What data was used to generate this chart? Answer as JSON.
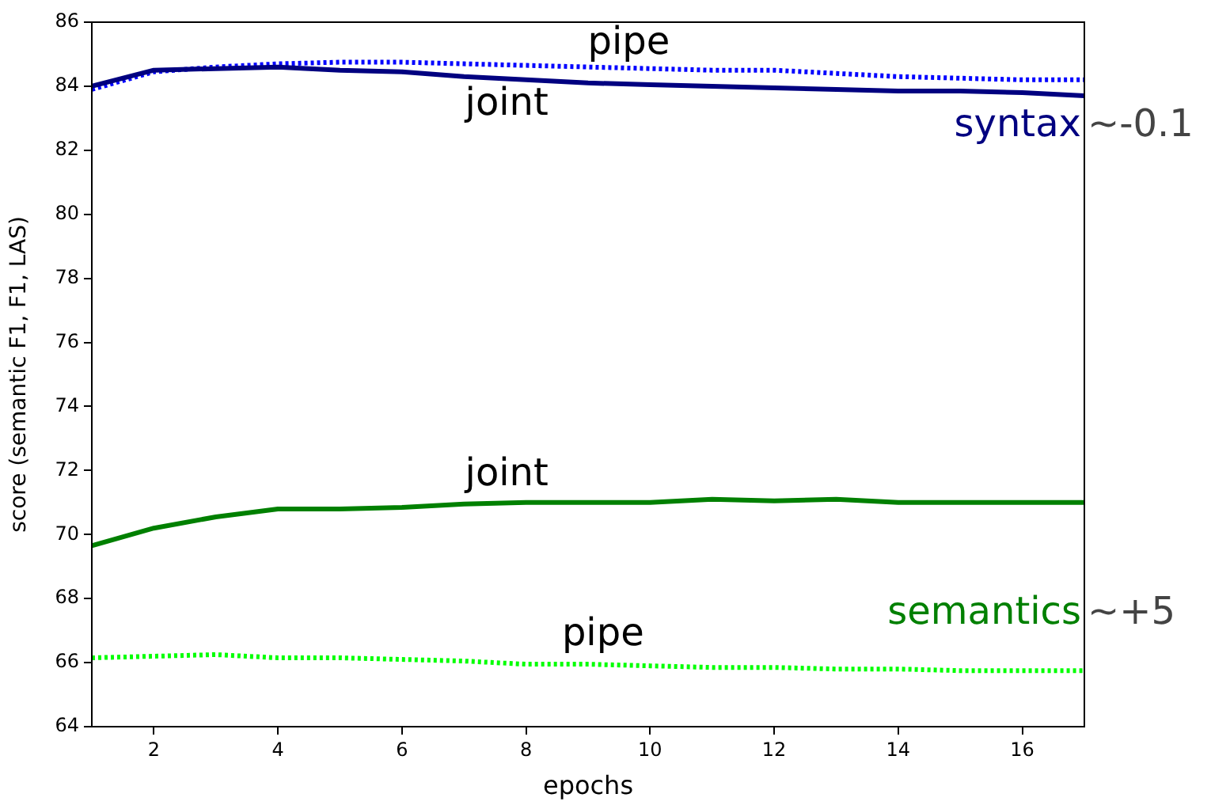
{
  "chart_data": {
    "type": "line",
    "xlabel": "epochs",
    "ylabel": "score (semantic F1, F1, LAS)",
    "x": [
      1,
      2,
      3,
      4,
      5,
      6,
      7,
      8,
      9,
      10,
      11,
      12,
      13,
      14,
      15,
      16,
      17
    ],
    "xlim": [
      1,
      17
    ],
    "xticks": [
      2,
      4,
      6,
      8,
      10,
      12,
      14,
      16
    ],
    "ylim": [
      64,
      86
    ],
    "yticks": [
      64,
      66,
      68,
      70,
      72,
      74,
      76,
      78,
      80,
      82,
      84,
      86
    ],
    "grid": false,
    "legend": false,
    "marker": "none",
    "series": [
      {
        "name": "syntax",
        "color": "#000080",
        "line_style": "solid",
        "values": [
          84.0,
          84.5,
          84.55,
          84.6,
          84.5,
          84.45,
          84.3,
          84.2,
          84.1,
          84.05,
          84.0,
          83.95,
          83.9,
          83.85,
          83.85,
          83.8,
          83.7
        ]
      },
      {
        "color": "#0000ff",
        "line_style": "dotted",
        "values": [
          83.9,
          84.45,
          84.6,
          84.7,
          84.75,
          84.75,
          84.7,
          84.65,
          84.6,
          84.55,
          84.5,
          84.5,
          84.4,
          84.3,
          84.25,
          84.2,
          84.2
        ]
      },
      {
        "name": "semantics",
        "color": "#008000",
        "line_style": "solid",
        "values": [
          69.65,
          70.2,
          70.55,
          70.8,
          70.8,
          70.85,
          70.95,
          71.0,
          71.0,
          71.0,
          71.1,
          71.05,
          71.1,
          71.0,
          71.0,
          71.0,
          71.0
        ]
      },
      {
        "color": "#00ff00",
        "line_style": "dotted",
        "values": [
          66.15,
          66.2,
          66.25,
          66.15,
          66.15,
          66.1,
          66.05,
          65.95,
          65.95,
          65.9,
          65.85,
          65.85,
          65.8,
          65.8,
          65.75,
          65.75,
          65.75
        ]
      }
    ],
    "annotations": [
      "pipe",
      "joint",
      "~-0.1",
      "joint",
      "pipe",
      "~+5"
    ]
  }
}
